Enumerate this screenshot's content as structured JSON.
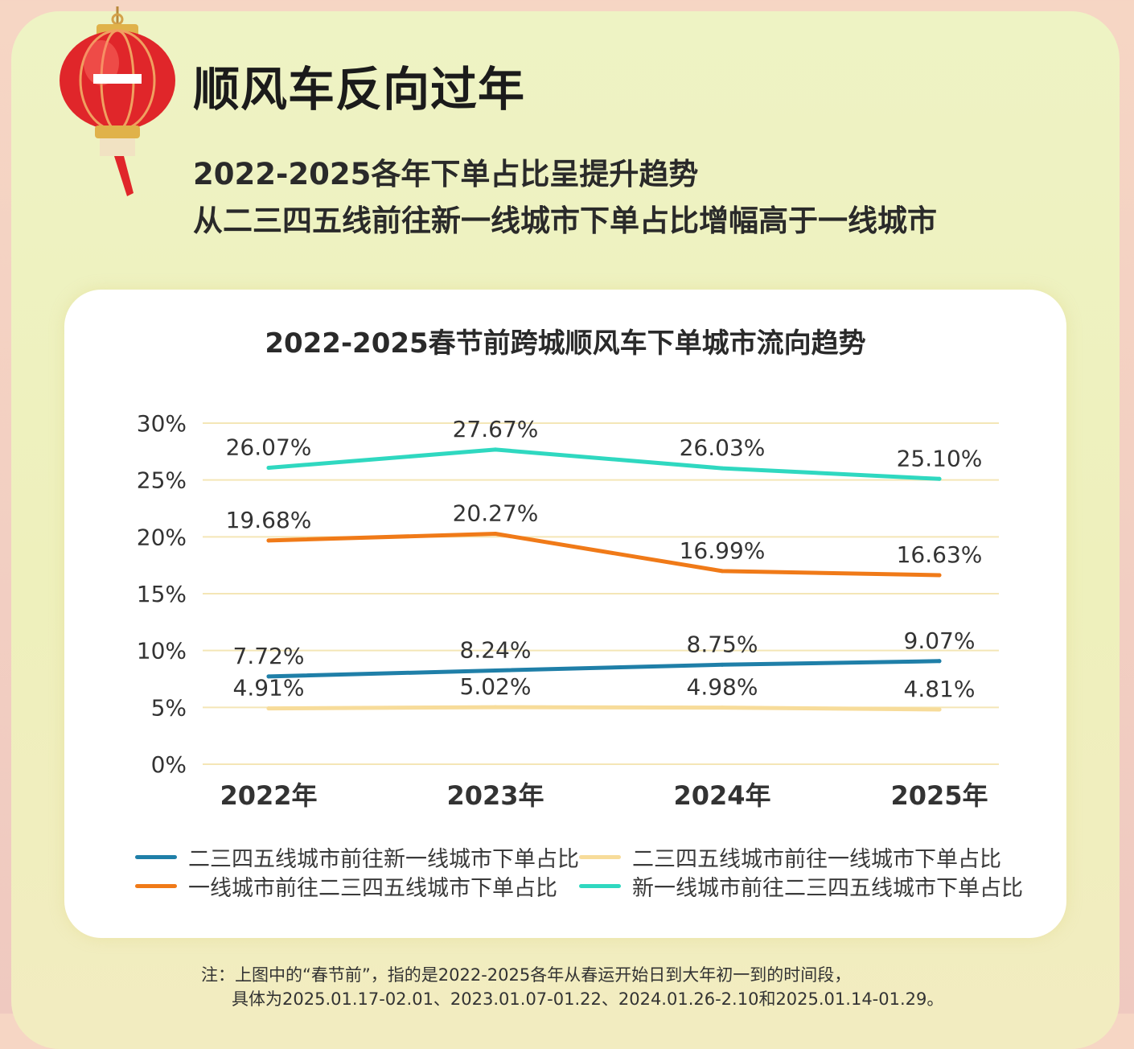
{
  "page": {
    "title": "顺风车反向过年",
    "subtitle_lines": [
      "2022-2025各年下单占比呈提升趋势",
      "从二三四五线前往新一线城市下单占比增幅高于一线城市"
    ],
    "lantern_icon": "lantern-icon",
    "footnote_lines": [
      "注：上图中的“春节前”，指的是2022-2025各年从春运开始日到大年初一到的时间段，",
      "具体为2025.01.17-02.01、2023.01.07-01.22、2024.01.26-2.10和2025.01.14-01.29。"
    ]
  },
  "chart_data": {
    "type": "line",
    "title": "2022-2025春节前跨城顺风车下单城市流向趋势",
    "categories": [
      "2022年",
      "2023年",
      "2024年",
      "2025年"
    ],
    "ylim": [
      0,
      30
    ],
    "yticks": [
      "0%",
      "5%",
      "10%",
      "15%",
      "20%",
      "25%",
      "30%"
    ],
    "grid": true,
    "legend_position": "bottom",
    "series": [
      {
        "name": "新一线城市前往二三四五线城市下单占比",
        "values": [
          26.07,
          27.67,
          26.03,
          25.1
        ],
        "labels": [
          "26.07%",
          "27.67%",
          "26.03%",
          "25.10%"
        ],
        "color": "#2fd8c0"
      },
      {
        "name": "一线城市前往二三四五线城市下单占比",
        "values": [
          19.68,
          20.27,
          16.99,
          16.63
        ],
        "labels": [
          "19.68%",
          "20.27%",
          "16.99%",
          "16.63%"
        ],
        "color": "#f07a18"
      },
      {
        "name": "二三四五线城市前往新一线城市下单占比",
        "values": [
          7.72,
          8.24,
          8.75,
          9.07
        ],
        "labels": [
          "7.72%",
          "8.24%",
          "8.75%",
          "9.07%"
        ],
        "color": "#1f7fa8"
      },
      {
        "name": "二三四五线城市前往一线城市下单占比",
        "values": [
          4.91,
          5.02,
          4.98,
          4.81
        ],
        "labels": [
          "4.91%",
          "5.02%",
          "4.98%",
          "4.81%"
        ],
        "color": "#f7dc9a"
      }
    ]
  }
}
